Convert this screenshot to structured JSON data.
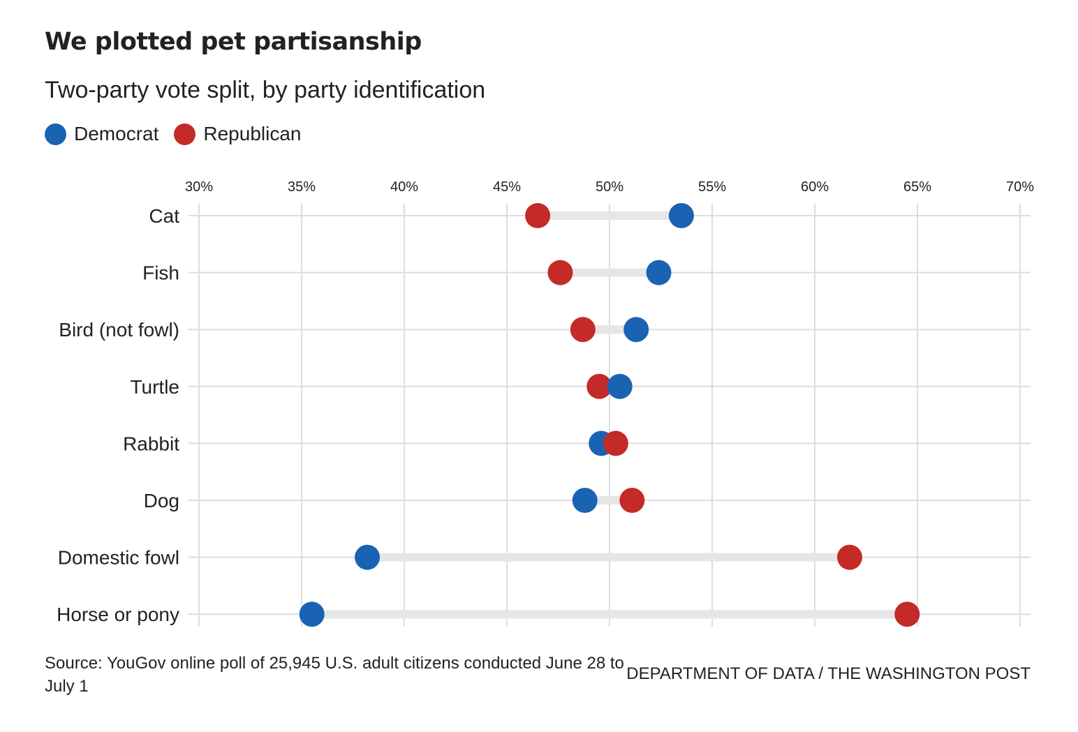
{
  "title": "We plotted pet partisanship",
  "subtitle": "Two-party vote split, by party identification",
  "legend": [
    {
      "label": "Democrat",
      "color": "#1a63b3"
    },
    {
      "label": "Republican",
      "color": "#c42a27"
    }
  ],
  "footer": {
    "source": "Source: YouGov online poll of 25,945 U.S. adult citizens conducted June 28 to July 1",
    "credit": "DEPARTMENT OF DATA / THE WASHINGTON POST"
  },
  "chart_data": {
    "type": "dot-plot",
    "xlim": [
      30,
      70
    ],
    "ticks": [
      30,
      35,
      40,
      45,
      50,
      55,
      60,
      65,
      70
    ],
    "tick_labels": [
      "30%",
      "35%",
      "40%",
      "45%",
      "50%",
      "55%",
      "60%",
      "65%",
      "70%"
    ],
    "grid": true,
    "categories": [
      "Cat",
      "Fish",
      "Bird (not fowl)",
      "Turtle",
      "Rabbit",
      "Dog",
      "Domestic fowl",
      "Horse or pony"
    ],
    "series": [
      {
        "name": "Democrat",
        "color": "#1a63b3",
        "values": [
          53.5,
          52.4,
          51.3,
          50.5,
          49.6,
          48.8,
          38.2,
          35.5
        ]
      },
      {
        "name": "Republican",
        "color": "#c42a27",
        "values": [
          46.5,
          47.6,
          48.7,
          49.5,
          50.3,
          51.1,
          61.7,
          64.5
        ]
      }
    ]
  }
}
